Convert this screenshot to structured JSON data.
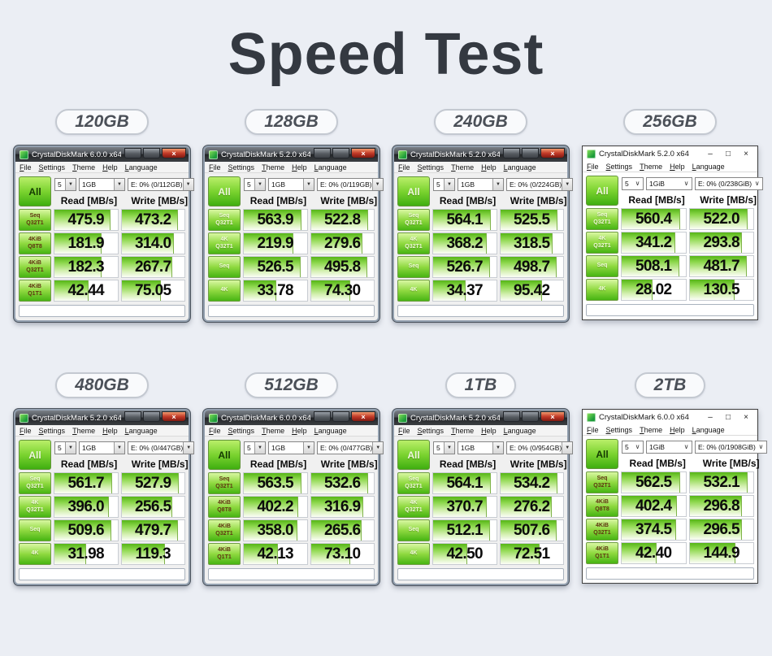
{
  "page": {
    "title": "Speed Test",
    "background": "#ebeef4"
  },
  "menu": [
    "File",
    "Settings",
    "Theme",
    "Help",
    "Language"
  ],
  "columns": {
    "read": "Read [MB/s]",
    "write": "Write [MB/s]"
  },
  "all_label": "All",
  "window_controls": {
    "minimize": "–",
    "maximize": "□",
    "close": "×",
    "combo_arrow": "▼",
    "combo_arrow_flat": "∨"
  },
  "groups": [
    {
      "capacity": "120GB",
      "window": {
        "title": "CrystalDiskMark 6.0.0 x64",
        "chrome": "win7",
        "version": "6",
        "count": "5",
        "size": "1GB",
        "drive": "E: 0% (0/112GB)",
        "rows": [
          {
            "label_top": "Seq",
            "label_bottom": "Q32T1",
            "read": "475.9",
            "write": "473.2"
          },
          {
            "label_top": "4KiB",
            "label_bottom": "Q8T8",
            "read": "181.9",
            "write": "314.0"
          },
          {
            "label_top": "4KiB",
            "label_bottom": "Q32T1",
            "read": "182.3",
            "write": "267.7"
          },
          {
            "label_top": "4KiB",
            "label_bottom": "Q1T1",
            "read": "42.44",
            "write": "75.05"
          }
        ]
      }
    },
    {
      "capacity": "128GB",
      "window": {
        "title": "CrystalDiskMark 5.2.0 x64",
        "chrome": "win7",
        "version": "5",
        "count": "5",
        "size": "1GB",
        "drive": "E: 0% (0/119GB)",
        "rows": [
          {
            "label_top": "Seq",
            "label_bottom": "Q32T1",
            "read": "563.9",
            "write": "522.8"
          },
          {
            "label_top": "4K",
            "label_bottom": "Q32T1",
            "read": "219.9",
            "write": "279.6"
          },
          {
            "label_top": "Seq",
            "label_bottom": null,
            "read": "526.5",
            "write": "495.8"
          },
          {
            "label_top": "4K",
            "label_bottom": null,
            "read": "33.78",
            "write": "74.30"
          }
        ]
      }
    },
    {
      "capacity": "240GB",
      "window": {
        "title": "CrystalDiskMark 5.2.0 x64",
        "chrome": "win7",
        "version": "5",
        "count": "5",
        "size": "1GB",
        "drive": "E: 0% (0/224GB)",
        "rows": [
          {
            "label_top": "Seq",
            "label_bottom": "Q32T1",
            "read": "564.1",
            "write": "525.5"
          },
          {
            "label_top": "4K",
            "label_bottom": "Q32T1",
            "read": "368.2",
            "write": "318.5"
          },
          {
            "label_top": "Seq",
            "label_bottom": null,
            "read": "526.7",
            "write": "498.7"
          },
          {
            "label_top": "4K",
            "label_bottom": null,
            "read": "34.37",
            "write": "95.42"
          }
        ]
      }
    },
    {
      "capacity": "256GB",
      "window": {
        "title": "CrystalDiskMark 5.2.0 x64",
        "chrome": "win10",
        "version": "5",
        "count": "5",
        "size": "1GiB",
        "drive": "E: 0% (0/238GiB)",
        "rows": [
          {
            "label_top": "Seq",
            "label_bottom": "Q32T1",
            "read": "560.4",
            "write": "522.0"
          },
          {
            "label_top": "4K",
            "label_bottom": "Q32T1",
            "read": "341.2",
            "write": "293.8"
          },
          {
            "label_top": "Seq",
            "label_bottom": null,
            "read": "508.1",
            "write": "481.7"
          },
          {
            "label_top": "4K",
            "label_bottom": null,
            "read": "28.02",
            "write": "130.5"
          }
        ]
      }
    },
    {
      "capacity": "480GB",
      "window": {
        "title": "CrystalDiskMark 5.2.0 x64",
        "chrome": "win7",
        "version": "5",
        "count": "5",
        "size": "1GB",
        "drive": "E: 0% (0/447GB)",
        "rows": [
          {
            "label_top": "Seq",
            "label_bottom": "Q32T1",
            "read": "561.7",
            "write": "527.9"
          },
          {
            "label_top": "4K",
            "label_bottom": "Q32T1",
            "read": "396.0",
            "write": "256.5"
          },
          {
            "label_top": "Seq",
            "label_bottom": null,
            "read": "509.6",
            "write": "479.7"
          },
          {
            "label_top": "4K",
            "label_bottom": null,
            "read": "31.98",
            "write": "119.3"
          }
        ]
      }
    },
    {
      "capacity": "512GB",
      "window": {
        "title": "CrystalDiskMark 6.0.0 x64",
        "chrome": "win7",
        "version": "6",
        "count": "5",
        "size": "1GB",
        "drive": "E: 0% (0/477GB)",
        "rows": [
          {
            "label_top": "Seq",
            "label_bottom": "Q32T1",
            "read": "563.5",
            "write": "532.6"
          },
          {
            "label_top": "4KiB",
            "label_bottom": "Q8T8",
            "read": "402.2",
            "write": "316.9"
          },
          {
            "label_top": "4KiB",
            "label_bottom": "Q32T1",
            "read": "358.0",
            "write": "265.6"
          },
          {
            "label_top": "4KiB",
            "label_bottom": "Q1T1",
            "read": "42.13",
            "write": "73.10"
          }
        ]
      }
    },
    {
      "capacity": "1TB",
      "window": {
        "title": "CrystalDiskMark 5.2.0 x64",
        "chrome": "win7",
        "version": "5",
        "count": "5",
        "size": "1GB",
        "drive": "E: 0% (0/954GB)",
        "rows": [
          {
            "label_top": "Seq",
            "label_bottom": "Q32T1",
            "read": "564.1",
            "write": "534.2"
          },
          {
            "label_top": "4K",
            "label_bottom": "Q32T1",
            "read": "370.7",
            "write": "276.2"
          },
          {
            "label_top": "Seq",
            "label_bottom": null,
            "read": "512.1",
            "write": "507.6"
          },
          {
            "label_top": "4K",
            "label_bottom": null,
            "read": "42.50",
            "write": "72.51"
          }
        ]
      }
    },
    {
      "capacity": "2TB",
      "window": {
        "title": "CrystalDiskMark 6.0.0 x64",
        "chrome": "win10",
        "version": "6",
        "count": "5",
        "size": "1GiB",
        "drive": "E: 0% (0/1908GiB)",
        "rows": [
          {
            "label_top": "Seq",
            "label_bottom": "Q32T1",
            "read": "562.5",
            "write": "532.1"
          },
          {
            "label_top": "4KiB",
            "label_bottom": "Q8T8",
            "read": "402.4",
            "write": "296.8"
          },
          {
            "label_top": "4KiB",
            "label_bottom": "Q32T1",
            "read": "374.5",
            "write": "296.5"
          },
          {
            "label_top": "4KiB",
            "label_bottom": "Q1T1",
            "read": "42.40",
            "write": "144.9"
          }
        ]
      }
    }
  ]
}
